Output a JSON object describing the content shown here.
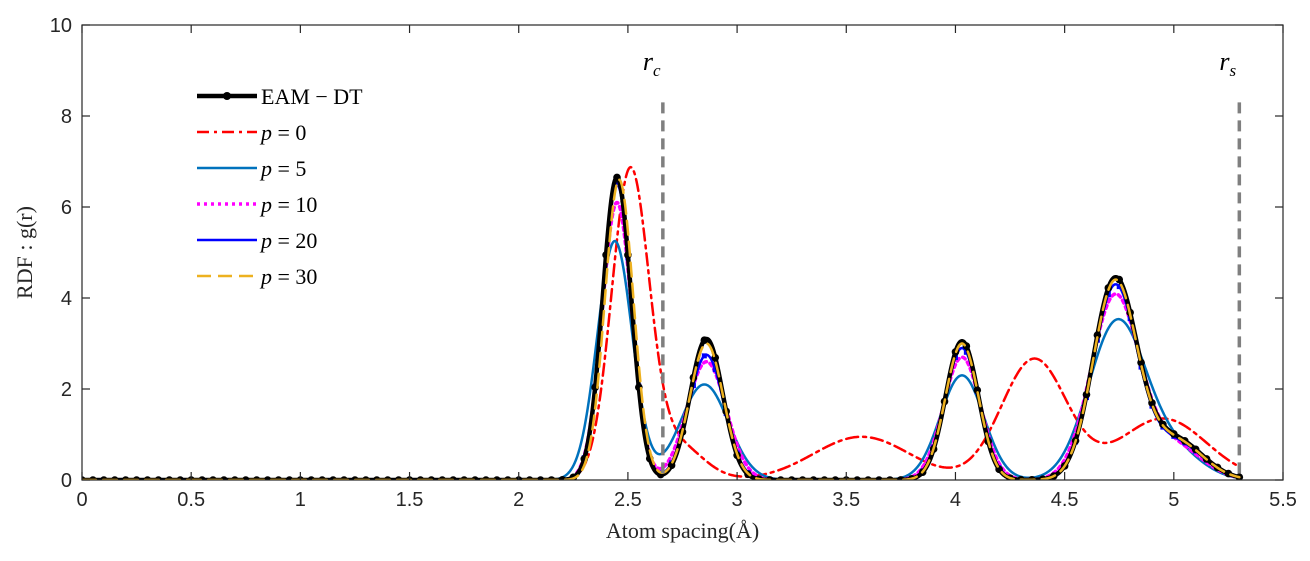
{
  "chart_data": {
    "type": "line",
    "xlabel": "Atom spacing(Å)",
    "ylabel": "RDF : g(r)",
    "xlim": [
      0,
      5.5
    ],
    "ylim": [
      0,
      10
    ],
    "xticks": [
      0,
      0.5,
      1,
      1.5,
      2,
      2.5,
      3,
      3.5,
      4,
      4.5,
      5,
      5.5
    ],
    "yticks": [
      0,
      2,
      4,
      6,
      8,
      10
    ],
    "grid": false,
    "legend_position": "upper-left",
    "vlines": [
      {
        "name": "r_c",
        "label_main": "r",
        "label_sub": "c",
        "x": 2.66,
        "color": "#7f7f7f"
      },
      {
        "name": "r_s",
        "label_main": "r",
        "label_sub": "s",
        "x": 5.3,
        "color": "#7f7f7f"
      }
    ],
    "series": [
      {
        "name": "EAM − DT",
        "label_var": "",
        "label_val": "EAM − DT",
        "color": "#000000",
        "style": "solid-markers",
        "peaks": [
          [
            2.45,
            6.65,
            0.065
          ],
          [
            2.86,
            3.1,
            0.075
          ],
          [
            4.03,
            3.05,
            0.075
          ],
          [
            4.73,
            4.35,
            0.1
          ],
          [
            5.0,
            0.9,
            0.13
          ]
        ]
      },
      {
        "name": "p = 0",
        "label_var": "p",
        "label_val": " = 0",
        "color": "#ff0000",
        "style": "dashdot",
        "peaks": [
          [
            2.51,
            6.7,
            0.085
          ],
          [
            2.72,
            0.8,
            0.12
          ],
          [
            3.57,
            0.95,
            0.22
          ],
          [
            4.36,
            2.65,
            0.15
          ],
          [
            4.95,
            1.35,
            0.2
          ]
        ]
      },
      {
        "name": "p = 5",
        "label_var": "p",
        "label_val": " = 5",
        "color": "#0072bd",
        "style": "solid",
        "peaks": [
          [
            2.44,
            5.25,
            0.08
          ],
          [
            2.85,
            2.1,
            0.11
          ],
          [
            4.03,
            2.3,
            0.1
          ],
          [
            4.74,
            3.45,
            0.13
          ],
          [
            5.0,
            0.6,
            0.13
          ]
        ]
      },
      {
        "name": "p = 10",
        "label_var": "p",
        "label_val": " = 10",
        "color": "#ff00ff",
        "style": "dotted",
        "peaks": [
          [
            2.45,
            6.1,
            0.068
          ],
          [
            2.86,
            2.6,
            0.09
          ],
          [
            4.03,
            2.7,
            0.085
          ],
          [
            4.73,
            4.0,
            0.11
          ],
          [
            5.0,
            0.75,
            0.13
          ]
        ]
      },
      {
        "name": "p = 20",
        "label_var": "p",
        "label_val": " = 20",
        "color": "#0000ff",
        "style": "solid-squares",
        "peaks": [
          [
            2.45,
            6.5,
            0.066
          ],
          [
            2.86,
            2.75,
            0.08
          ],
          [
            4.03,
            2.9,
            0.078
          ],
          [
            4.73,
            4.2,
            0.1
          ],
          [
            5.0,
            0.85,
            0.13
          ]
        ]
      },
      {
        "name": "p = 30",
        "label_var": "p",
        "label_val": " = 30",
        "color": "#edb120",
        "style": "dashed",
        "peaks": [
          [
            2.46,
            6.6,
            0.065
          ],
          [
            2.86,
            3.0,
            0.077
          ],
          [
            4.03,
            3.0,
            0.076
          ],
          [
            4.73,
            4.3,
            0.1
          ],
          [
            5.0,
            0.88,
            0.13
          ]
        ]
      }
    ]
  }
}
